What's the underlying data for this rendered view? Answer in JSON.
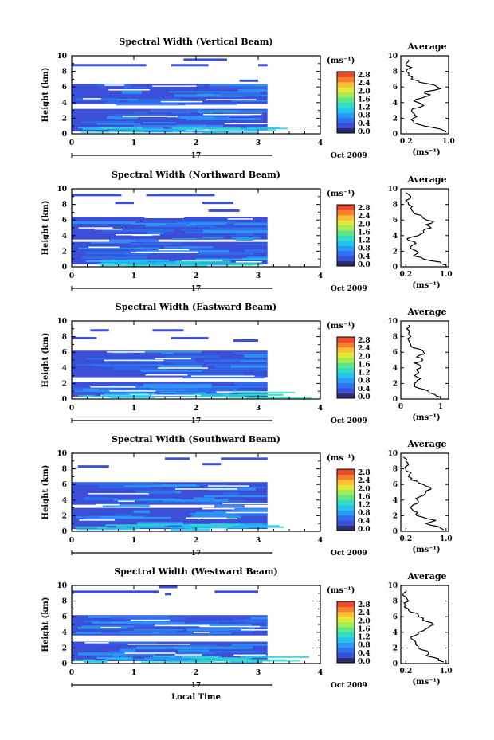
{
  "figure": {
    "date_label": "Oct 2009",
    "day_label": "17",
    "x_axis_label": "Local Time",
    "time_ticks": [
      "0",
      "1",
      "2",
      "3",
      "4"
    ],
    "unit_label": "(ms⁻¹)",
    "colorbar_ticks": [
      "0.0",
      "0.4",
      "0.8",
      "1.2",
      "1.6",
      "2.0",
      "2.4",
      "2.8"
    ],
    "average_title": "Average",
    "average_xlabel": "(ms⁻¹)",
    "colorbar_colors": [
      "#2e2e6b",
      "#3b4fd8",
      "#2f6ff0",
      "#2a9af5",
      "#27c3f0",
      "#33dcc6",
      "#5ee68a",
      "#a3ec55",
      "#e3e83c",
      "#f9c034",
      "#f6802d",
      "#ea4a2b"
    ]
  },
  "chart_data": [
    {
      "type": "heatmap",
      "title": "Spectral Width (Vertical Beam)",
      "xlabel": "",
      "ylabel": "Height (km)",
      "xlim": [
        0,
        4
      ],
      "ylim": [
        0,
        10
      ],
      "data_end_hour": 3.15,
      "y_ticks": [
        "0",
        "2",
        "4",
        "6",
        "8",
        "10"
      ],
      "colorbar": {
        "min": 0.0,
        "max": 2.8,
        "ticks": [
          "0.0",
          "0.4",
          "0.8",
          "1.2",
          "1.6",
          "2.0",
          "2.4",
          "2.8"
        ]
      },
      "echo_layers_km": [
        [
          0.3,
          3.2
        ],
        [
          3.8,
          6.4
        ]
      ],
      "sparse_returns": [
        {
          "height_km": 9.5,
          "start_hour": 1.8,
          "end_hour": 2.5
        },
        {
          "height_km": 8.8,
          "start_hour": 0.0,
          "end_hour": 1.2
        },
        {
          "height_km": 8.8,
          "start_hour": 1.6,
          "end_hour": 2.2
        },
        {
          "height_km": 8.8,
          "start_hour": 3.0,
          "end_hour": 3.15
        },
        {
          "height_km": 6.8,
          "start_hour": 2.7,
          "end_hour": 3.0
        }
      ],
      "average_profile": {
        "xlabel": "(ms⁻¹)",
        "xlim": [
          0.1,
          1.0
        ],
        "x_ticks": [
          "0.2",
          "1.0"
        ],
        "height_km": [
          0.2,
          0.6,
          1.0,
          1.4,
          1.8,
          2.2,
          2.6,
          3.0,
          3.4,
          3.8,
          4.2,
          4.6,
          5.0,
          5.4,
          5.8,
          6.2,
          6.6,
          7.0,
          7.5,
          8.0,
          8.5,
          9.0,
          9.5
        ],
        "values": [
          0.95,
          0.85,
          0.55,
          0.35,
          0.3,
          0.4,
          0.35,
          0.3,
          0.45,
          0.5,
          0.35,
          0.5,
          0.65,
          0.55,
          0.85,
          0.75,
          0.45,
          0.3,
          0.25,
          0.2,
          0.3,
          0.2,
          0.25
        ]
      }
    },
    {
      "type": "heatmap",
      "title": "Spectral Width (Northward Beam)",
      "xlabel": "",
      "ylabel": "Height (km)",
      "xlim": [
        0,
        4
      ],
      "ylim": [
        0,
        10
      ],
      "data_end_hour": 3.15,
      "y_ticks": [
        "0",
        "2",
        "4",
        "6",
        "8",
        "10"
      ],
      "colorbar": {
        "min": 0.0,
        "max": 2.8,
        "ticks": [
          "0.0",
          "0.4",
          "0.8",
          "1.2",
          "1.6",
          "2.0",
          "2.4",
          "2.8"
        ]
      },
      "echo_layers_km": [
        [
          0.3,
          3.2
        ],
        [
          3.5,
          6.4
        ]
      ],
      "sparse_returns": [
        {
          "height_km": 9.2,
          "start_hour": 0.0,
          "end_hour": 0.8
        },
        {
          "height_km": 9.2,
          "start_hour": 1.2,
          "end_hour": 2.3
        },
        {
          "height_km": 8.2,
          "start_hour": 0.7,
          "end_hour": 1.0
        },
        {
          "height_km": 8.2,
          "start_hour": 2.1,
          "end_hour": 2.6
        },
        {
          "height_km": 7.2,
          "start_hour": 2.2,
          "end_hour": 2.7
        }
      ],
      "average_profile": {
        "xlabel": "(ms⁻¹)",
        "xlim": [
          0.1,
          1.05
        ],
        "x_ticks": [
          "0.2",
          "1.0"
        ],
        "height_km": [
          0.2,
          0.6,
          1.0,
          1.4,
          1.8,
          2.2,
          2.6,
          3.0,
          3.4,
          3.8,
          4.2,
          4.6,
          5.0,
          5.4,
          5.8,
          6.2,
          6.6,
          7.0,
          7.5,
          8.0,
          8.5,
          9.0,
          9.5
        ],
        "values": [
          1.0,
          0.9,
          0.55,
          0.35,
          0.45,
          0.35,
          0.3,
          0.4,
          0.25,
          0.3,
          0.5,
          0.55,
          0.7,
          0.6,
          0.75,
          0.55,
          0.5,
          0.35,
          0.3,
          0.25,
          0.2,
          0.3,
          0.2
        ]
      }
    },
    {
      "type": "heatmap",
      "title": "Spectral Width (Eastward Beam)",
      "xlabel": "",
      "ylabel": "Height (km)",
      "xlim": [
        0,
        4
      ],
      "ylim": [
        0,
        10
      ],
      "data_end_hour": 3.15,
      "y_ticks": [
        "0",
        "2",
        "4",
        "6",
        "8",
        "10"
      ],
      "colorbar": {
        "min": 0.0,
        "max": 2.8,
        "ticks": [
          "0.0",
          "0.4",
          "0.8",
          "1.2",
          "1.6",
          "2.0",
          "2.4",
          "2.8"
        ]
      },
      "echo_layers_km": [
        [
          0.3,
          2.2
        ],
        [
          2.8,
          6.2
        ]
      ],
      "sparse_returns": [
        {
          "height_km": 8.8,
          "start_hour": 0.3,
          "end_hour": 0.6
        },
        {
          "height_km": 8.8,
          "start_hour": 1.3,
          "end_hour": 1.8
        },
        {
          "height_km": 7.8,
          "start_hour": 0.0,
          "end_hour": 0.4
        },
        {
          "height_km": 7.8,
          "start_hour": 1.6,
          "end_hour": 2.2
        },
        {
          "height_km": 7.5,
          "start_hour": 2.6,
          "end_hour": 3.0
        }
      ],
      "average_profile": {
        "xlabel": "(ms⁻¹)",
        "xlim": [
          0,
          1.2
        ],
        "x_ticks": [
          "0",
          "1"
        ],
        "height_km": [
          0.2,
          0.6,
          1.0,
          1.4,
          1.8,
          2.2,
          2.6,
          3.0,
          3.4,
          3.8,
          4.2,
          4.6,
          5.0,
          5.4,
          5.8,
          6.2,
          6.6,
          7.0,
          7.5,
          8.0,
          8.5,
          9.0,
          9.5
        ],
        "values": [
          1.0,
          0.85,
          0.7,
          0.45,
          0.35,
          0.4,
          0.5,
          0.35,
          0.45,
          0.4,
          0.5,
          0.35,
          0.55,
          0.4,
          0.6,
          0.55,
          0.3,
          0.25,
          0.2,
          0.25,
          0.2,
          0.15,
          0.2
        ]
      }
    },
    {
      "type": "heatmap",
      "title": "Spectral Width (Southward Beam)",
      "xlabel": "",
      "ylabel": "Height (km)",
      "xlim": [
        0,
        4
      ],
      "ylim": [
        0,
        10
      ],
      "data_end_hour": 3.15,
      "y_ticks": [
        "0",
        "2",
        "4",
        "6",
        "8",
        "10"
      ],
      "colorbar": {
        "min": 0.0,
        "max": 2.8,
        "ticks": [
          "0.0",
          "0.4",
          "0.8",
          "1.2",
          "1.6",
          "2.0",
          "2.4",
          "2.8"
        ]
      },
      "echo_layers_km": [
        [
          0.3,
          3.0
        ],
        [
          3.4,
          6.3
        ]
      ],
      "sparse_returns": [
        {
          "height_km": 9.3,
          "start_hour": 1.5,
          "end_hour": 1.9
        },
        {
          "height_km": 9.3,
          "start_hour": 2.4,
          "end_hour": 3.15
        },
        {
          "height_km": 8.3,
          "start_hour": 0.1,
          "end_hour": 0.6
        },
        {
          "height_km": 8.6,
          "start_hour": 2.1,
          "end_hour": 2.4
        }
      ],
      "average_profile": {
        "xlabel": "(ms⁻¹)",
        "xlim": [
          0.1,
          1.05
        ],
        "x_ticks": [
          "0.2",
          "1.0"
        ],
        "height_km": [
          0.2,
          0.6,
          1.0,
          1.4,
          1.8,
          2.2,
          2.6,
          3.0,
          3.4,
          3.8,
          4.2,
          4.6,
          5.0,
          5.4,
          5.8,
          6.2,
          6.6,
          7.0,
          7.5,
          8.0,
          8.5,
          9.0,
          9.5
        ],
        "values": [
          0.95,
          0.85,
          0.6,
          0.8,
          0.55,
          0.4,
          0.35,
          0.3,
          0.35,
          0.45,
          0.4,
          0.55,
          0.6,
          0.7,
          0.6,
          0.45,
          0.3,
          0.25,
          0.3,
          0.2,
          0.25,
          0.2,
          0.15
        ]
      }
    },
    {
      "type": "heatmap",
      "title": "Spectral Width (Westward Beam)",
      "xlabel": "Local Time",
      "ylabel": "Height (km)",
      "xlim": [
        0,
        4
      ],
      "ylim": [
        0,
        10
      ],
      "data_end_hour": 3.15,
      "y_ticks": [
        "0",
        "2",
        "4",
        "6",
        "8",
        "10"
      ],
      "colorbar": {
        "min": 0.0,
        "max": 2.8,
        "ticks": [
          "0.0",
          "0.4",
          "0.8",
          "1.2",
          "1.6",
          "2.0",
          "2.4",
          "2.8"
        ]
      },
      "echo_layers_km": [
        [
          0.3,
          2.8
        ],
        [
          3.6,
          6.2
        ]
      ],
      "sparse_returns": [
        {
          "height_km": 9.2,
          "start_hour": 0.0,
          "end_hour": 1.4
        },
        {
          "height_km": 9.2,
          "start_hour": 2.3,
          "end_hour": 3.0
        },
        {
          "height_km": 9.8,
          "start_hour": 1.4,
          "end_hour": 1.7
        },
        {
          "height_km": 8.9,
          "start_hour": 1.5,
          "end_hour": 1.6
        }
      ],
      "average_profile": {
        "xlabel": "(ms⁻¹)",
        "xlim": [
          0.1,
          1.05
        ],
        "x_ticks": [
          "0.2",
          "1.0"
        ],
        "height_km": [
          0.2,
          0.6,
          1.0,
          1.4,
          1.8,
          2.2,
          2.6,
          3.0,
          3.4,
          3.8,
          4.2,
          4.6,
          5.0,
          5.4,
          5.8,
          6.2,
          6.6,
          7.0,
          7.5,
          8.0,
          8.5,
          9.0,
          9.5
        ],
        "values": [
          0.95,
          0.85,
          0.6,
          0.65,
          0.5,
          0.45,
          0.4,
          0.35,
          0.3,
          0.45,
          0.55,
          0.65,
          0.75,
          0.6,
          0.55,
          0.45,
          0.3,
          0.25,
          0.2,
          0.25,
          0.2,
          0.15,
          0.2
        ]
      }
    }
  ]
}
